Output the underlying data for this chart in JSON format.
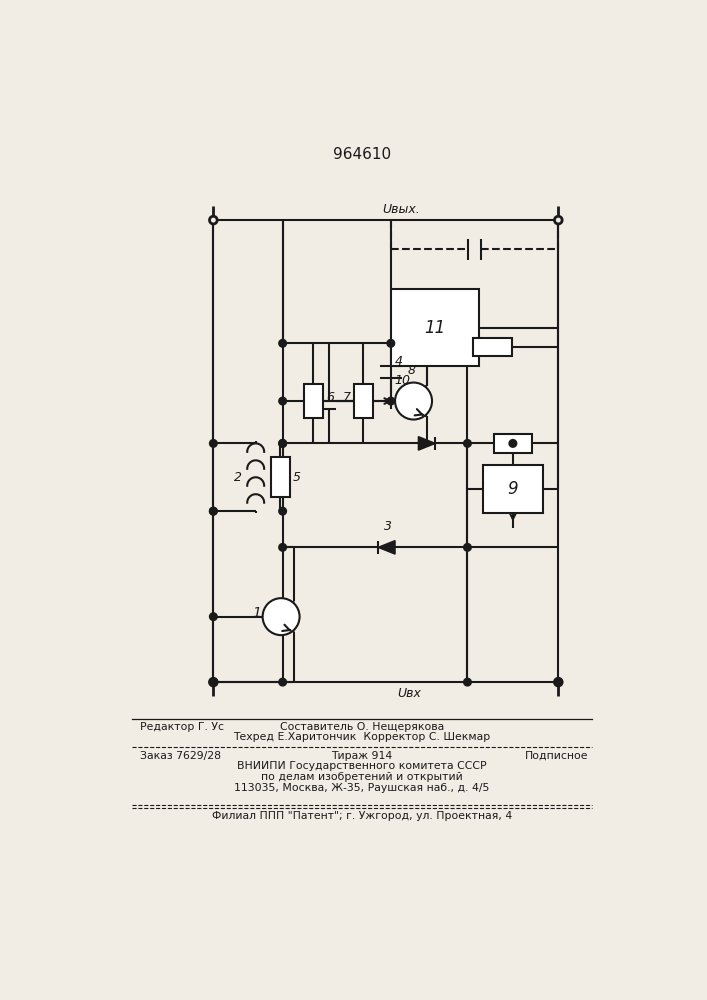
{
  "title": "964610",
  "bg_color": "#f2ede4",
  "lc": "#1a1a1a",
  "lw": 1.5,
  "footer": {
    "l1_left": "Редактор Г. Ус",
    "l1_center": "Составитель О. Нещерякова",
    "l2_center": "Техред Е.Харитончик  Корректор С. Шекмар",
    "l3_left": "Заказ 7629/28",
    "l3_center": "Тираж 914",
    "l3_right": "Подписное",
    "l4_center": "ВНИИПИ Государственного комитета СССР",
    "l5_center": "по делам изобретений и открытий",
    "l6_center": "113035, Москва, Ж-35, Раушская наб., д. 4/5",
    "l7_center": "Филиал ППП \"Патент\"; г. Ужгород, ул. Проектная, 4"
  }
}
